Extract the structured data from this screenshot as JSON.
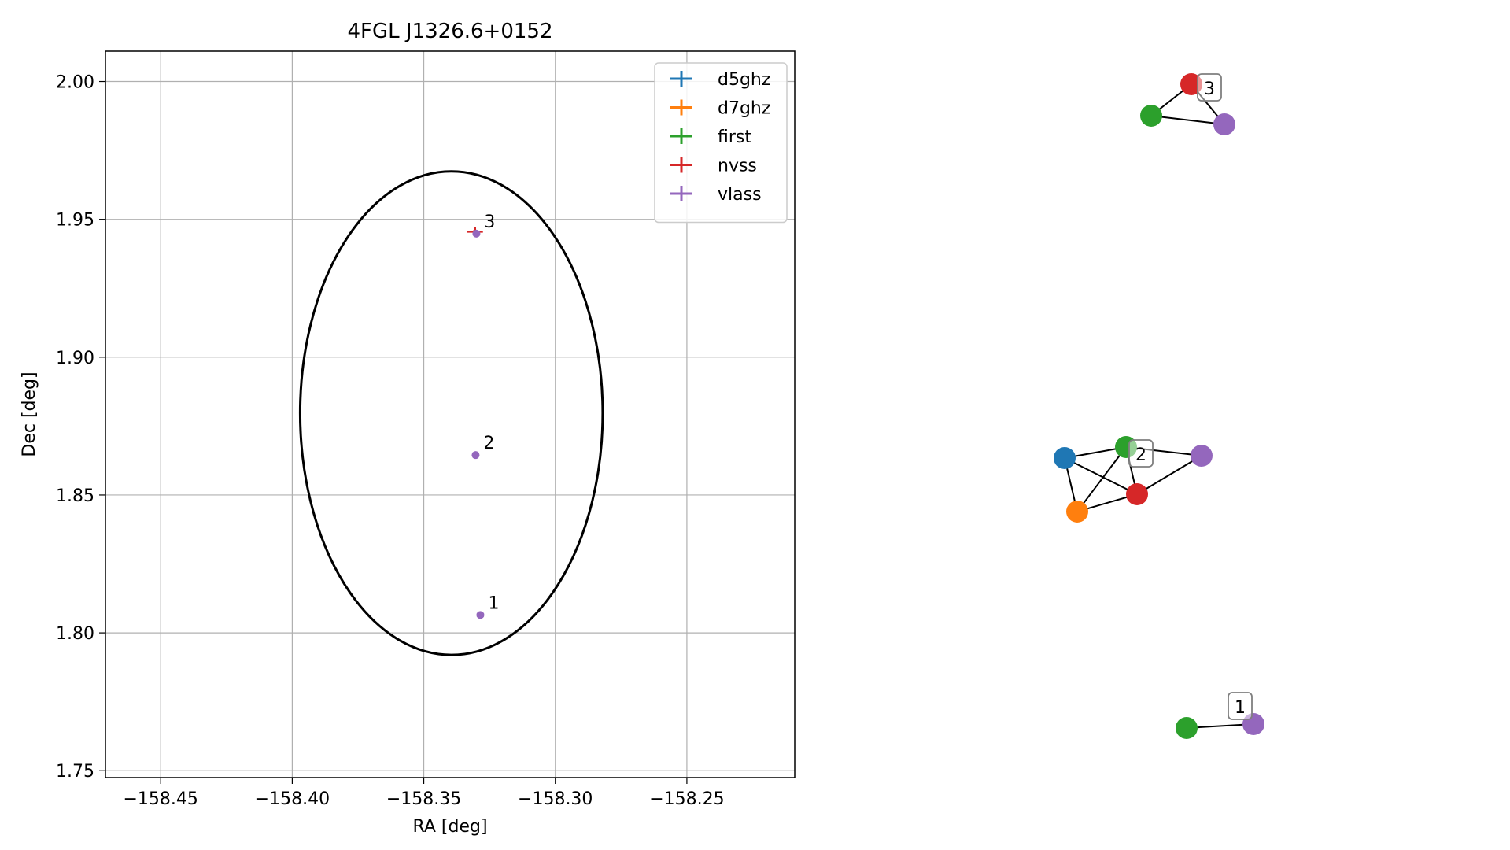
{
  "chart_data": [
    {
      "type": "scatter",
      "title": "4FGL J1326.6+0152",
      "xlabel": "RA [deg]",
      "ylabel": "Dec [deg]",
      "xlim": [
        -158.471,
        -158.209
      ],
      "ylim": [
        1.7475,
        2.011
      ],
      "xticks": [
        -158.45,
        -158.4,
        -158.35,
        -158.3,
        -158.25
      ],
      "xtick_labels": [
        "−158.45",
        "−158.40",
        "−158.35",
        "−158.30",
        "−158.25"
      ],
      "yticks": [
        1.75,
        1.8,
        1.85,
        1.9,
        1.95,
        2.0
      ],
      "ytick_labels": [
        "1.75",
        "1.80",
        "1.85",
        "1.90",
        "1.95",
        "2.00"
      ],
      "grid": true,
      "legend_position": "top-right",
      "series": [
        {
          "name": "d5ghz",
          "color": "#1f77b4",
          "points": []
        },
        {
          "name": "d7ghz",
          "color": "#ff7f0e",
          "points": []
        },
        {
          "name": "first",
          "color": "#2ca02c",
          "points": []
        },
        {
          "name": "nvss",
          "color": "#d62728",
          "points": [
            {
              "x": -158.3305,
              "y": 1.9455
            }
          ]
        },
        {
          "name": "vlass",
          "color": "#9467bd",
          "points": [
            {
              "x": -158.33,
              "y": 1.9448
            },
            {
              "x": -158.3303,
              "y": 1.8645
            },
            {
              "x": -158.3285,
              "y": 1.8065
            }
          ]
        }
      ],
      "ellipse": {
        "center": [
          -158.3395,
          1.8797
        ],
        "ra_semi_axis": 0.0575,
        "dec_semi_axis": 0.0877,
        "color": "#000000"
      },
      "annotations": [
        {
          "text": "3",
          "x": -158.33,
          "y": 1.9448
        },
        {
          "text": "2",
          "x": -158.3303,
          "y": 1.8645
        },
        {
          "text": "1",
          "x": -158.3285,
          "y": 1.8065
        }
      ]
    },
    {
      "type": "network",
      "groups": [
        {
          "label": "3",
          "nodes": [
            {
              "id": "nvss",
              "color": "#d62728"
            },
            {
              "id": "first",
              "color": "#2ca02c"
            },
            {
              "id": "vlass",
              "color": "#9467bd"
            }
          ],
          "edges": [
            [
              "nvss",
              "first"
            ],
            [
              "first",
              "vlass"
            ],
            [
              "nvss",
              "vlass"
            ]
          ]
        },
        {
          "label": "2",
          "nodes": [
            {
              "id": "d5ghz",
              "color": "#1f77b4"
            },
            {
              "id": "first",
              "color": "#2ca02c"
            },
            {
              "id": "vlass",
              "color": "#9467bd"
            },
            {
              "id": "d7ghz",
              "color": "#ff7f0e"
            },
            {
              "id": "nvss",
              "color": "#d62728"
            }
          ],
          "edges": [
            [
              "d5ghz",
              "first"
            ],
            [
              "d5ghz",
              "nvss"
            ],
            [
              "d5ghz",
              "d7ghz"
            ],
            [
              "first",
              "d7ghz"
            ],
            [
              "first",
              "nvss"
            ],
            [
              "first",
              "vlass"
            ],
            [
              "d7ghz",
              "nvss"
            ],
            [
              "nvss",
              "vlass"
            ]
          ]
        },
        {
          "label": "1",
          "nodes": [
            {
              "id": "first",
              "color": "#2ca02c"
            },
            {
              "id": "vlass",
              "color": "#9467bd"
            }
          ],
          "edges": [
            [
              "first",
              "vlass"
            ]
          ]
        }
      ]
    }
  ]
}
